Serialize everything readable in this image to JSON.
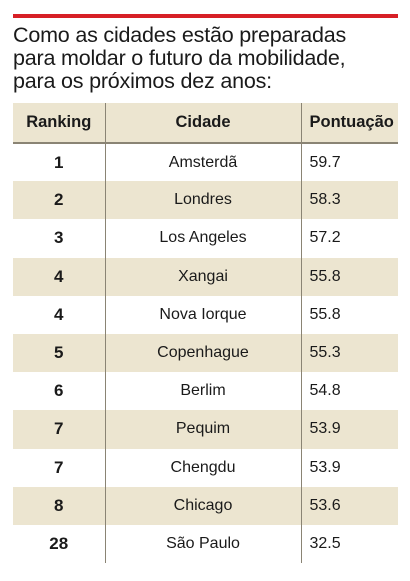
{
  "title": "Como as cidades estão preparadas\npara moldar o futuro da mobilidade,\npara os próximos dez anos:",
  "colors": {
    "accent_rule": "#d71f26",
    "band": "#ece5d0",
    "divider": "#8a8474",
    "text": "#1a1a1a"
  },
  "chart_data": {
    "type": "table",
    "title": "Como as cidades estão preparadas para moldar o futuro da mobilidade, para os próximos dez anos:",
    "columns": [
      "Ranking",
      "Cidade",
      "Pontuação"
    ],
    "rows": [
      {
        "rank": "1",
        "city": "Amsterdã",
        "score": "59.7"
      },
      {
        "rank": "2",
        "city": "Londres",
        "score": "58.3"
      },
      {
        "rank": "3",
        "city": "Los Angeles",
        "score": "57.2"
      },
      {
        "rank": "4",
        "city": "Xangai",
        "score": "55.8"
      },
      {
        "rank": "4",
        "city": "Nova Iorque",
        "score": "55.8"
      },
      {
        "rank": "5",
        "city": "Copenhague",
        "score": "55.3"
      },
      {
        "rank": "6",
        "city": "Berlim",
        "score": "54.8"
      },
      {
        "rank": "7",
        "city": "Pequim",
        "score": "53.9"
      },
      {
        "rank": "7",
        "city": "Chengdu",
        "score": "53.9"
      },
      {
        "rank": "8",
        "city": "Chicago",
        "score": "53.6"
      },
      {
        "rank": "28",
        "city": "São Paulo",
        "score": "32.5"
      }
    ]
  }
}
